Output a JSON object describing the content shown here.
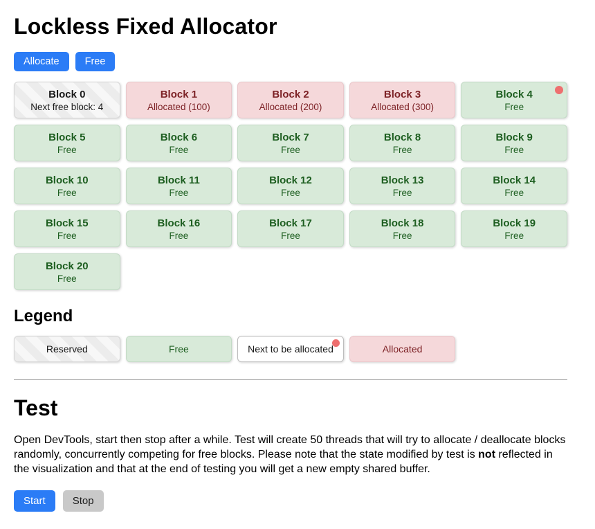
{
  "page": {
    "title": "Lockless Fixed Allocator"
  },
  "toolbar": {
    "allocate_label": "Allocate",
    "free_label": "Free"
  },
  "blocks": [
    {
      "title": "Block 0",
      "subtitle": "Next free block: 4",
      "state": "reserved",
      "next": false
    },
    {
      "title": "Block 1",
      "subtitle": "Allocated (100)",
      "state": "allocated",
      "next": false
    },
    {
      "title": "Block 2",
      "subtitle": "Allocated (200)",
      "state": "allocated",
      "next": false
    },
    {
      "title": "Block 3",
      "subtitle": "Allocated (300)",
      "state": "allocated",
      "next": false
    },
    {
      "title": "Block 4",
      "subtitle": "Free",
      "state": "free",
      "next": true
    },
    {
      "title": "Block 5",
      "subtitle": "Free",
      "state": "free",
      "next": false
    },
    {
      "title": "Block 6",
      "subtitle": "Free",
      "state": "free",
      "next": false
    },
    {
      "title": "Block 7",
      "subtitle": "Free",
      "state": "free",
      "next": false
    },
    {
      "title": "Block 8",
      "subtitle": "Free",
      "state": "free",
      "next": false
    },
    {
      "title": "Block 9",
      "subtitle": "Free",
      "state": "free",
      "next": false
    },
    {
      "title": "Block 10",
      "subtitle": "Free",
      "state": "free",
      "next": false
    },
    {
      "title": "Block 11",
      "subtitle": "Free",
      "state": "free",
      "next": false
    },
    {
      "title": "Block 12",
      "subtitle": "Free",
      "state": "free",
      "next": false
    },
    {
      "title": "Block 13",
      "subtitle": "Free",
      "state": "free",
      "next": false
    },
    {
      "title": "Block 14",
      "subtitle": "Free",
      "state": "free",
      "next": false
    },
    {
      "title": "Block 15",
      "subtitle": "Free",
      "state": "free",
      "next": false
    },
    {
      "title": "Block 16",
      "subtitle": "Free",
      "state": "free",
      "next": false
    },
    {
      "title": "Block 17",
      "subtitle": "Free",
      "state": "free",
      "next": false
    },
    {
      "title": "Block 18",
      "subtitle": "Free",
      "state": "free",
      "next": false
    },
    {
      "title": "Block 19",
      "subtitle": "Free",
      "state": "free",
      "next": false
    },
    {
      "title": "Block 20",
      "subtitle": "Free",
      "state": "free",
      "next": false
    }
  ],
  "legend": {
    "heading": "Legend",
    "items": [
      {
        "label": "Reserved",
        "state": "reserved",
        "dot": false
      },
      {
        "label": "Free",
        "state": "free",
        "dot": false
      },
      {
        "label": "Next to be allocated",
        "state": "next",
        "dot": true
      },
      {
        "label": "Allocated",
        "state": "allocated",
        "dot": false
      }
    ]
  },
  "test": {
    "heading": "Test",
    "description_before": "Open DevTools, start then stop after a while. Test will create 50 threads that will try to allocate / deallocate blocks randomly, concurrently competing for free blocks. Please note that the state modified by test is ",
    "description_bold": "not",
    "description_after": " reflected in the visualization and that at the end of testing you will get a new empty shared buffer.",
    "start_label": "Start",
    "stop_label": "Stop"
  },
  "colors": {
    "accent_blue": "#2b7cf6",
    "free_bg": "#d8ead9",
    "free_text": "#1d5e20",
    "allocated_bg": "#f5d8da",
    "allocated_text": "#7d2226",
    "next_dot": "#ee6f6f",
    "stop_bg": "#c9c9c9"
  }
}
